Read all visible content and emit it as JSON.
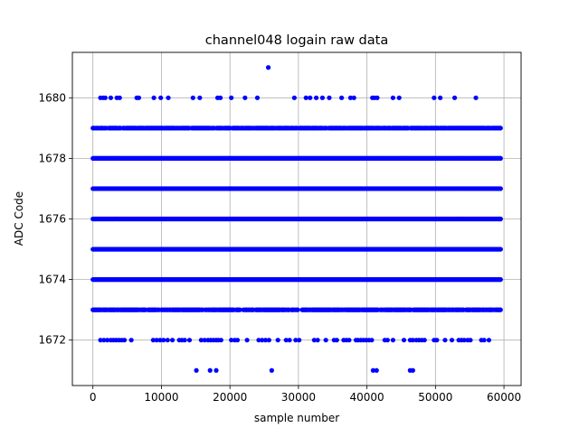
{
  "chart_data": {
    "type": "scatter",
    "title": "channel048 logain raw data",
    "xlabel": "sample number",
    "ylabel": "ADC Code",
    "xlim": [
      -3000,
      62500
    ],
    "ylim": [
      1670.5,
      1681.5
    ],
    "x_ticks": [
      {
        "value": 0,
        "label": "0"
      },
      {
        "value": 10000,
        "label": "10000"
      },
      {
        "value": 20000,
        "label": "20000"
      },
      {
        "value": 30000,
        "label": "30000"
      },
      {
        "value": 40000,
        "label": "40000"
      },
      {
        "value": 50000,
        "label": "50000"
      },
      {
        "value": 60000,
        "label": "60000"
      }
    ],
    "y_ticks": [
      {
        "value": 1672,
        "label": "1672"
      },
      {
        "value": 1674,
        "label": "1674"
      },
      {
        "value": 1676,
        "label": "1676"
      },
      {
        "value": 1678,
        "label": "1678"
      },
      {
        "value": 1680,
        "label": "1680"
      }
    ],
    "grid": true,
    "marker_color": "#0000ff",
    "dense_levels": [
      {
        "y": 1679,
        "x_range": [
          0,
          59500
        ],
        "density": "medium"
      },
      {
        "y": 1678,
        "x_range": [
          0,
          59500
        ],
        "density": "full"
      },
      {
        "y": 1677,
        "x_range": [
          0,
          59500
        ],
        "density": "full"
      },
      {
        "y": 1676,
        "x_range": [
          0,
          59500
        ],
        "density": "full"
      },
      {
        "y": 1675,
        "x_range": [
          0,
          59500
        ],
        "density": "full"
      },
      {
        "y": 1674,
        "x_range": [
          0,
          59500
        ],
        "density": "full"
      },
      {
        "y": 1673,
        "x_range": [
          0,
          59500
        ],
        "density": "medium"
      }
    ],
    "sparse_points": [
      {
        "y": 1681,
        "x": [
          25600
        ]
      },
      {
        "y": 1680,
        "x": [
          1100,
          1500,
          1800,
          2600,
          3500,
          3900,
          6400,
          6700,
          8900,
          9900,
          11000,
          14600,
          15600,
          18200,
          18600,
          20200,
          22200,
          24000,
          29400,
          31100,
          31700,
          32600,
          33500,
          34500,
          36300,
          37600,
          38100,
          40800,
          41100,
          41500,
          43800,
          44700,
          49800,
          50700,
          52800,
          55900
        ]
      },
      {
        "y": 1672,
        "x": [
          1100,
          1600,
          2100,
          2600,
          3000,
          3400,
          3800,
          4200,
          4600,
          5600,
          8800,
          9300,
          9800,
          10300,
          10900,
          11600,
          12600,
          13000,
          13400,
          14100,
          15800,
          16300,
          16800,
          17200,
          17600,
          18000,
          18300,
          18700,
          20200,
          20700,
          21100,
          22500,
          24200,
          24700,
          25200,
          25700,
          27000,
          28200,
          28700,
          29600,
          30100,
          32300,
          32800,
          34000,
          35200,
          35600,
          36600,
          37000,
          37400,
          38400,
          38700,
          39100,
          39500,
          39900,
          40300,
          40700,
          42600,
          43000,
          43800,
          45400,
          46300,
          46700,
          47200,
          47600,
          48000,
          48400,
          49800,
          50200,
          51400,
          52400,
          53400,
          53800,
          54200,
          54700,
          55100,
          56700,
          57100,
          57800
        ]
      },
      {
        "y": 1671,
        "x": [
          15100,
          17100,
          18000,
          26100,
          40900,
          41400,
          46300,
          46700
        ]
      }
    ]
  }
}
